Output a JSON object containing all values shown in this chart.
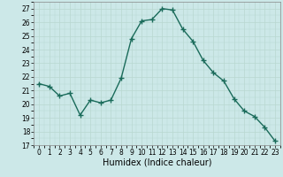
{
  "x": [
    0,
    1,
    2,
    3,
    4,
    5,
    6,
    7,
    8,
    9,
    10,
    11,
    12,
    13,
    14,
    15,
    16,
    17,
    18,
    19,
    20,
    21,
    22,
    23
  ],
  "y": [
    21.5,
    21.3,
    20.6,
    20.8,
    19.2,
    20.3,
    20.1,
    20.3,
    21.9,
    24.8,
    26.1,
    26.2,
    27.0,
    26.9,
    25.5,
    24.6,
    23.2,
    22.3,
    21.7,
    20.4,
    19.5,
    19.1,
    18.3,
    17.3
  ],
  "line_color": "#1a6b5a",
  "marker": "+",
  "marker_size": 4,
  "bg_color": "#cce8e8",
  "grid_color": "#b8d8d0",
  "ylim": [
    17,
    27.5
  ],
  "yticks": [
    17,
    18,
    19,
    20,
    21,
    22,
    23,
    24,
    25,
    26,
    27
  ],
  "xticks": [
    0,
    1,
    2,
    3,
    4,
    5,
    6,
    7,
    8,
    9,
    10,
    11,
    12,
    13,
    14,
    15,
    16,
    17,
    18,
    19,
    20,
    21,
    22,
    23
  ],
  "xlabel": "Humidex (Indice chaleur)",
  "xlabel_fontsize": 7,
  "tick_fontsize": 5.5,
  "line_width": 1.0
}
